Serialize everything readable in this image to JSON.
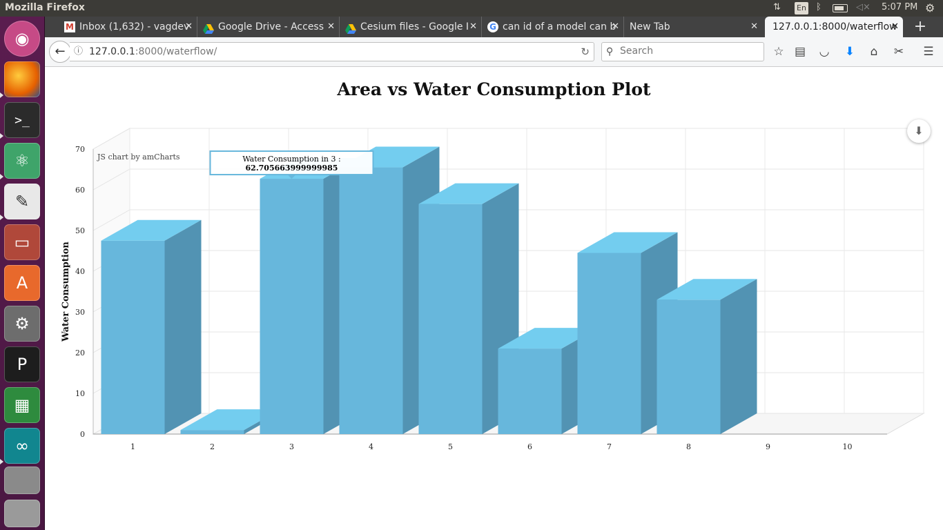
{
  "system": {
    "app_title": "Mozilla Firefox",
    "keyboard": "En",
    "clock": "5:07 PM"
  },
  "browser": {
    "tabs": [
      {
        "label": "Inbox (1,632) - vagdev",
        "icon": "gmail-icon"
      },
      {
        "label": "Google Drive - Access",
        "icon": "google-drive-icon"
      },
      {
        "label": "Cesium files - Google I",
        "icon": "google-drive-icon"
      },
      {
        "label": "can id of a model can b",
        "icon": "google-icon"
      },
      {
        "label": "New Tab",
        "icon": ""
      },
      {
        "label": "127.0.0.1:8000/waterflow",
        "icon": ""
      }
    ],
    "url_host": "127.0.0.1",
    "url_rest": ":8000/waterflow/",
    "search_placeholder": "Search"
  },
  "launcher": [
    "ubuntu-dash-icon",
    "firefox-icon",
    "terminal-icon",
    "atom-icon",
    "text-editor-icon",
    "file-manager-icon",
    "software-center-icon",
    "system-settings-icon",
    "pycharm-icon",
    "spreadsheet-icon",
    "arduino-icon",
    "drive-icon",
    "trash-icon"
  ],
  "chart_data": {
    "type": "bar",
    "title": "Area vs Water Consumption Plot",
    "ylabel": "Water Consumption",
    "xlabel": "",
    "categories": [
      "1",
      "2",
      "3",
      "4",
      "5",
      "6",
      "7",
      "8",
      "9",
      "10"
    ],
    "values": [
      47.5,
      1,
      62.705663999999985,
      65.5,
      56.5,
      21,
      44.5,
      33,
      0,
      0
    ],
    "ylim": [
      0,
      70
    ],
    "yticks": [
      0,
      10,
      20,
      30,
      40,
      50,
      60,
      70
    ],
    "bar_color": "#67b7dc",
    "grid": true,
    "credit": "JS chart by amCharts",
    "tooltip": {
      "category": "3",
      "title": "Water Consumption in 3 :",
      "value": "62.705663999999985"
    }
  }
}
